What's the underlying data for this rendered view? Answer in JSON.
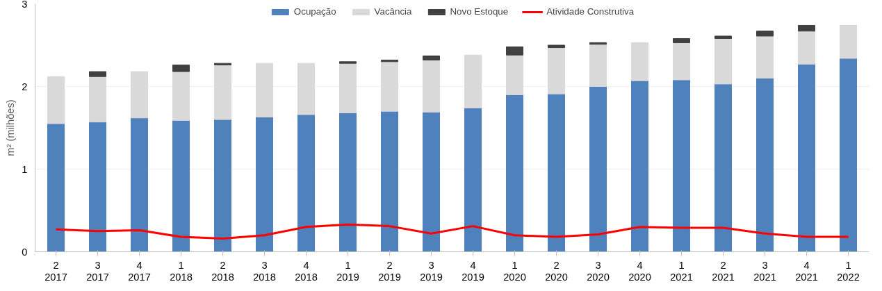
{
  "chart_data": {
    "type": "bar",
    "stacked": true,
    "ylabel": "m² (milhões)",
    "categories": [
      "2\n2017",
      "3\n2017",
      "4\n2017",
      "1\n2018",
      "2\n2018",
      "3\n2018",
      "4\n2018",
      "1\n2019",
      "2\n2019",
      "3\n2019",
      "4\n2019",
      "1\n2020",
      "2\n2020",
      "3\n2020",
      "4\n2020",
      "1\n2021",
      "2\n2021",
      "3\n2021",
      "4\n2021",
      "1\n2022"
    ],
    "series": [
      {
        "name": "Ocupação",
        "color": "#4f81bd",
        "values": [
          1.55,
          1.57,
          1.62,
          1.59,
          1.6,
          1.63,
          1.66,
          1.68,
          1.7,
          1.69,
          1.74,
          1.9,
          1.91,
          2.0,
          2.07,
          2.08,
          2.03,
          2.1,
          2.27,
          2.34
        ]
      },
      {
        "name": "Vacância",
        "color": "#d9d9d9",
        "values": [
          0.57,
          0.55,
          0.56,
          0.59,
          0.66,
          0.65,
          0.62,
          0.6,
          0.6,
          0.63,
          0.64,
          0.48,
          0.56,
          0.51,
          0.46,
          0.45,
          0.55,
          0.51,
          0.4,
          0.4
        ]
      },
      {
        "name": "Novo Estoque",
        "color": "#404040",
        "values": [
          null,
          0.06,
          null,
          0.08,
          0.02,
          null,
          null,
          0.02,
          0.02,
          0.05,
          null,
          0.1,
          0.03,
          0.02,
          null,
          0.05,
          0.03,
          0.06,
          0.07,
          null
        ]
      },
      {
        "name": "Atividade Construtiva",
        "type": "line",
        "color": "#ff0000",
        "values": [
          0.27,
          0.25,
          0.26,
          0.18,
          0.16,
          0.2,
          0.3,
          0.33,
          0.31,
          0.22,
          0.31,
          0.2,
          0.18,
          0.21,
          0.3,
          0.29,
          0.29,
          0.22,
          0.18,
          0.18
        ]
      }
    ],
    "ylim": [
      0,
      3
    ],
    "yticks": [
      0,
      1,
      2,
      3
    ],
    "grid": "y",
    "legend": "top"
  }
}
